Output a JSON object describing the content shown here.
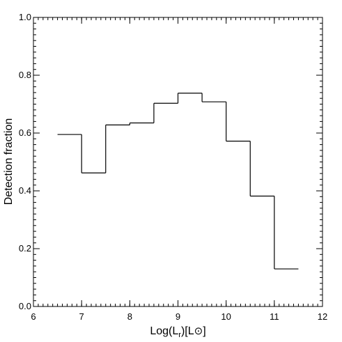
{
  "chart_data": {
    "type": "line",
    "style": "histogram-step",
    "xlabel": "Log(L",
    "xlabel_sub": "r",
    "xlabel_suffix": ")[L",
    "xlabel_sun": "⊙",
    "xlabel_end": "]",
    "ylabel": "Detection fraction",
    "xlim": [
      6,
      12
    ],
    "ylim": [
      0.0,
      1.0
    ],
    "x_ticks": [
      6,
      7,
      8,
      9,
      10,
      11,
      12
    ],
    "x_tick_labels": [
      "6",
      "7",
      "8",
      "9",
      "10",
      "11",
      "12"
    ],
    "y_ticks": [
      0.0,
      0.2,
      0.4,
      0.6,
      0.8,
      1.0
    ],
    "y_tick_labels": [
      "0.0",
      "0.2",
      "0.4",
      "0.6",
      "0.8",
      "1.0"
    ],
    "x_minor_step": 0.1,
    "y_minor_step": 0.02,
    "grid": false,
    "bins": [
      {
        "x0": 6.5,
        "x1": 7.0,
        "y": 0.595
      },
      {
        "x0": 7.0,
        "x1": 7.5,
        "y": 0.462
      },
      {
        "x0": 7.5,
        "x1": 8.0,
        "y": 0.628
      },
      {
        "x0": 8.0,
        "x1": 8.5,
        "y": 0.635
      },
      {
        "x0": 8.5,
        "x1": 9.0,
        "y": 0.703
      },
      {
        "x0": 9.0,
        "x1": 9.5,
        "y": 0.738
      },
      {
        "x0": 9.5,
        "x1": 10.0,
        "y": 0.708
      },
      {
        "x0": 10.0,
        "x1": 10.5,
        "y": 0.572
      },
      {
        "x0": 10.5,
        "x1": 11.0,
        "y": 0.382
      },
      {
        "x0": 11.0,
        "x1": 11.5,
        "y": 0.13
      }
    ]
  }
}
